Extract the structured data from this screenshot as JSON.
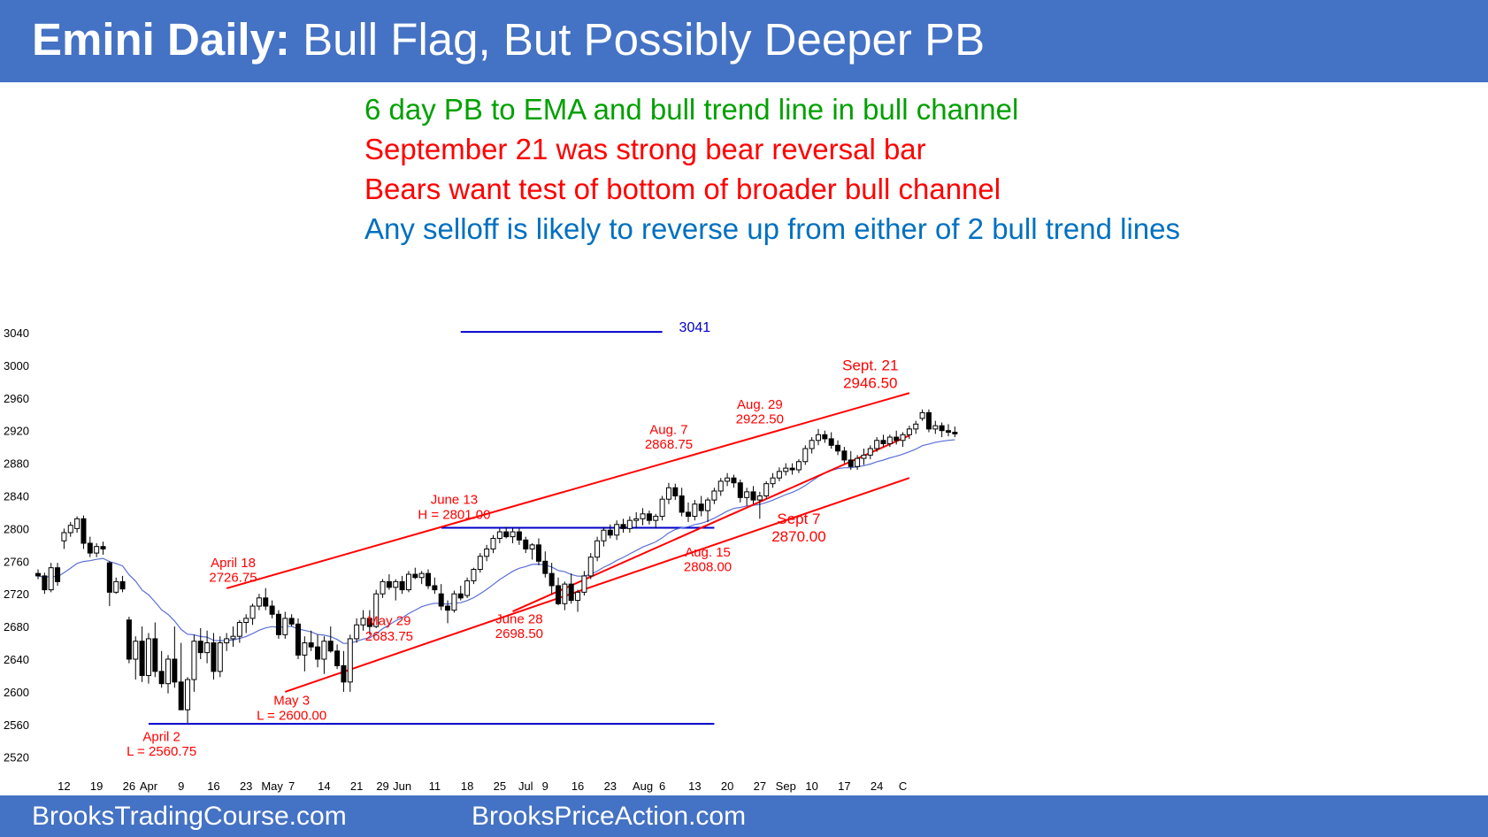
{
  "header": {
    "title_bold": "Emini Daily:",
    "title_rest": "Bull Flag, But Possibly Deeper PB"
  },
  "notes": [
    {
      "text": "6 day PB to EMA and bull trend line in bull channel",
      "color": "#00a000"
    },
    {
      "text": "September 21 was strong bear reversal bar",
      "color": "#ff0000"
    },
    {
      "text": "Bears want test of bottom of broader bull channel",
      "color": "#ff0000"
    },
    {
      "text": "Any selloff is likely to reverse up from either of 2 bull trend lines",
      "color": "#0070c0"
    }
  ],
  "footer": {
    "left": "BrooksTradingCourse.com",
    "center": "BrooksPriceAction.com"
  },
  "colors": {
    "header_bg": "#4472c4",
    "up_candle": "#ffffff",
    "down_candle": "#000000",
    "ema": "#5a6fd6",
    "trendline": "#ff0000",
    "level": "#0000cc"
  },
  "chart_data": {
    "type": "candlestick",
    "ylim": [
      2500,
      3050
    ],
    "y_ticks": [
      2520,
      2560,
      2600,
      2640,
      2680,
      2720,
      2760,
      2800,
      2840,
      2880,
      2920,
      2960,
      3000,
      3040
    ],
    "x_tick_labels": [
      {
        "label": "12",
        "i": 4
      },
      {
        "label": "19",
        "i": 9
      },
      {
        "label": "26",
        "i": 14
      },
      {
        "label": "Apr",
        "i": 17
      },
      {
        "label": "9",
        "i": 22
      },
      {
        "label": "16",
        "i": 27
      },
      {
        "label": "23",
        "i": 32
      },
      {
        "label": "May",
        "i": 36
      },
      {
        "label": "7",
        "i": 39
      },
      {
        "label": "14",
        "i": 44
      },
      {
        "label": "21",
        "i": 49
      },
      {
        "label": "29",
        "i": 53
      },
      {
        "label": "Jun",
        "i": 56
      },
      {
        "label": "11",
        "i": 61
      },
      {
        "label": "18",
        "i": 66
      },
      {
        "label": "25",
        "i": 71
      },
      {
        "label": "Jul",
        "i": 75
      },
      {
        "label": "9",
        "i": 78
      },
      {
        "label": "16",
        "i": 83
      },
      {
        "label": "23",
        "i": 88
      },
      {
        "label": "Aug",
        "i": 93
      },
      {
        "label": "6",
        "i": 96
      },
      {
        "label": "13",
        "i": 101
      },
      {
        "label": "20",
        "i": 106
      },
      {
        "label": "27",
        "i": 111
      },
      {
        "label": "Sep",
        "i": 115
      },
      {
        "label": "10",
        "i": 119
      },
      {
        "label": "17",
        "i": 124
      },
      {
        "label": "24",
        "i": 129
      },
      {
        "label": "C",
        "i": 133
      }
    ],
    "ohlc": [
      [
        2745,
        2750,
        2738,
        2742
      ],
      [
        2742,
        2746,
        2720,
        2725
      ],
      [
        2725,
        2758,
        2722,
        2752
      ],
      [
        2752,
        2758,
        2730,
        2735
      ],
      [
        2785,
        2800,
        2775,
        2795
      ],
      [
        2795,
        2808,
        2790,
        2804
      ],
      [
        2800,
        2815,
        2795,
        2812
      ],
      [
        2812,
        2816,
        2775,
        2782
      ],
      [
        2782,
        2790,
        2765,
        2770
      ],
      [
        2770,
        2782,
        2765,
        2778
      ],
      [
        2778,
        2784,
        2768,
        2775
      ],
      [
        2758,
        2760,
        2705,
        2722
      ],
      [
        2722,
        2740,
        2720,
        2735
      ],
      [
        2735,
        2742,
        2722,
        2726
      ],
      [
        2688,
        2692,
        2635,
        2640
      ],
      [
        2640,
        2668,
        2615,
        2662
      ],
      [
        2662,
        2680,
        2612,
        2620
      ],
      [
        2620,
        2672,
        2610,
        2665
      ],
      [
        2665,
        2685,
        2618,
        2625
      ],
      [
        2625,
        2650,
        2605,
        2610
      ],
      [
        2610,
        2645,
        2598,
        2640
      ],
      [
        2640,
        2680,
        2605,
        2612
      ],
      [
        2612,
        2660,
        2580,
        2578
      ],
      [
        2578,
        2618,
        2562,
        2615
      ],
      [
        2615,
        2670,
        2600,
        2662
      ],
      [
        2662,
        2678,
        2640,
        2648
      ],
      [
        2648,
        2675,
        2635,
        2660
      ],
      [
        2660,
        2672,
        2615,
        2625
      ],
      [
        2625,
        2668,
        2618,
        2660
      ],
      [
        2660,
        2672,
        2650,
        2665
      ],
      [
        2665,
        2680,
        2655,
        2668
      ],
      [
        2668,
        2688,
        2660,
        2685
      ],
      [
        2685,
        2695,
        2672,
        2690
      ],
      [
        2690,
        2708,
        2682,
        2705
      ],
      [
        2705,
        2720,
        2700,
        2715
      ],
      [
        2715,
        2727,
        2700,
        2705
      ],
      [
        2705,
        2712,
        2690,
        2695
      ],
      [
        2695,
        2700,
        2665,
        2670
      ],
      [
        2670,
        2698,
        2665,
        2690
      ],
      [
        2690,
        2695,
        2680,
        2683
      ],
      [
        2683,
        2690,
        2640,
        2645
      ],
      [
        2645,
        2668,
        2625,
        2660
      ],
      [
        2660,
        2675,
        2650,
        2655
      ],
      [
        2655,
        2670,
        2630,
        2640
      ],
      [
        2640,
        2668,
        2622,
        2662
      ],
      [
        2662,
        2680,
        2648,
        2650
      ],
      [
        2650,
        2658,
        2628,
        2632
      ],
      [
        2632,
        2650,
        2600,
        2612
      ],
      [
        2612,
        2670,
        2600,
        2665
      ],
      [
        2665,
        2690,
        2660,
        2682
      ],
      [
        2682,
        2700,
        2675,
        2690
      ],
      [
        2690,
        2700,
        2670,
        2680
      ],
      [
        2680,
        2725,
        2678,
        2720
      ],
      [
        2720,
        2738,
        2715,
        2735
      ],
      [
        2735,
        2744,
        2725,
        2728
      ],
      [
        2728,
        2738,
        2712,
        2735
      ],
      [
        2735,
        2742,
        2720,
        2725
      ],
      [
        2725,
        2748,
        2722,
        2744
      ],
      [
        2744,
        2752,
        2738,
        2740
      ],
      [
        2740,
        2748,
        2732,
        2745
      ],
      [
        2745,
        2750,
        2726,
        2730
      ],
      [
        2730,
        2740,
        2720,
        2725
      ],
      [
        2720,
        2732,
        2700,
        2705
      ],
      [
        2705,
        2712,
        2684,
        2700
      ],
      [
        2700,
        2724,
        2697,
        2720
      ],
      [
        2720,
        2730,
        2712,
        2715
      ],
      [
        2718,
        2740,
        2715,
        2736
      ],
      [
        2736,
        2752,
        2732,
        2750
      ],
      [
        2750,
        2770,
        2746,
        2766
      ],
      [
        2766,
        2780,
        2760,
        2775
      ],
      [
        2775,
        2792,
        2770,
        2788
      ],
      [
        2788,
        2800,
        2782,
        2796
      ],
      [
        2796,
        2802,
        2788,
        2790
      ],
      [
        2790,
        2801,
        2782,
        2796
      ],
      [
        2796,
        2800,
        2780,
        2786
      ],
      [
        2786,
        2790,
        2770,
        2775
      ],
      [
        2775,
        2782,
        2762,
        2780
      ],
      [
        2780,
        2788,
        2755,
        2760
      ],
      [
        2760,
        2772,
        2740,
        2745
      ],
      [
        2745,
        2758,
        2720,
        2730
      ],
      [
        2730,
        2740,
        2706,
        2708
      ],
      [
        2708,
        2735,
        2700,
        2732
      ],
      [
        2732,
        2745,
        2708,
        2712
      ],
      [
        2712,
        2725,
        2698,
        2722
      ],
      [
        2722,
        2748,
        2718,
        2742
      ],
      [
        2742,
        2770,
        2738,
        2765
      ],
      [
        2765,
        2790,
        2760,
        2785
      ],
      [
        2785,
        2802,
        2778,
        2798
      ],
      [
        2798,
        2805,
        2788,
        2792
      ],
      [
        2792,
        2810,
        2786,
        2805
      ],
      [
        2805,
        2812,
        2795,
        2800
      ],
      [
        2800,
        2815,
        2795,
        2810
      ],
      [
        2810,
        2820,
        2800,
        2812
      ],
      [
        2812,
        2825,
        2804,
        2818
      ],
      [
        2818,
        2822,
        2805,
        2810
      ],
      [
        2810,
        2818,
        2800,
        2815
      ],
      [
        2815,
        2840,
        2810,
        2836
      ],
      [
        2836,
        2856,
        2830,
        2850
      ],
      [
        2850,
        2855,
        2835,
        2840
      ],
      [
        2840,
        2850,
        2815,
        2820
      ],
      [
        2820,
        2832,
        2808,
        2815
      ],
      [
        2815,
        2835,
        2810,
        2830
      ],
      [
        2830,
        2840,
        2815,
        2822
      ],
      [
        2822,
        2838,
        2808,
        2835
      ],
      [
        2835,
        2850,
        2830,
        2846
      ],
      [
        2846,
        2862,
        2840,
        2858
      ],
      [
        2858,
        2868,
        2852,
        2862
      ],
      [
        2862,
        2866,
        2850,
        2856
      ],
      [
        2856,
        2860,
        2832,
        2838
      ],
      [
        2838,
        2850,
        2828,
        2845
      ],
      [
        2845,
        2852,
        2830,
        2835
      ],
      [
        2835,
        2845,
        2812,
        2840
      ],
      [
        2840,
        2858,
        2836,
        2855
      ],
      [
        2855,
        2868,
        2850,
        2862
      ],
      [
        2862,
        2875,
        2858,
        2870
      ],
      [
        2870,
        2880,
        2865,
        2874
      ],
      [
        2874,
        2880,
        2866,
        2872
      ],
      [
        2872,
        2885,
        2868,
        2882
      ],
      [
        2882,
        2902,
        2878,
        2898
      ],
      [
        2898,
        2912,
        2892,
        2908
      ],
      [
        2908,
        2922,
        2902,
        2915
      ],
      [
        2915,
        2920,
        2905,
        2910
      ],
      [
        2910,
        2918,
        2898,
        2902
      ],
      [
        2902,
        2908,
        2890,
        2895
      ],
      [
        2895,
        2900,
        2880,
        2884
      ],
      [
        2884,
        2895,
        2872,
        2876
      ],
      [
        2876,
        2890,
        2872,
        2886
      ],
      [
        2886,
        2898,
        2878,
        2890
      ],
      [
        2890,
        2902,
        2885,
        2898
      ],
      [
        2898,
        2912,
        2894,
        2908
      ],
      [
        2908,
        2915,
        2900,
        2904
      ],
      [
        2904,
        2915,
        2900,
        2912
      ],
      [
        2912,
        2920,
        2903,
        2908
      ],
      [
        2908,
        2918,
        2900,
        2915
      ],
      [
        2915,
        2926,
        2910,
        2922
      ],
      [
        2922,
        2932,
        2916,
        2928
      ],
      [
        2935,
        2946,
        2932,
        2942
      ],
      [
        2942,
        2946,
        2918,
        2922
      ],
      [
        2922,
        2932,
        2916,
        2926
      ],
      [
        2926,
        2930,
        2912,
        2920
      ],
      [
        2920,
        2928,
        2913,
        2918
      ],
      [
        2918,
        2925,
        2912,
        2916
      ]
    ],
    "ema_period": 20,
    "levels": [
      {
        "name": "3041",
        "y": 3041,
        "x_from": 65,
        "x_to": 96
      },
      {
        "name": "April 2 low",
        "y": 2560.75,
        "x_from": 17,
        "x_to": 104
      },
      {
        "name": "June 13 high",
        "y": 2801,
        "x_from": 62,
        "x_to": 104
      }
    ],
    "trend_lines": [
      {
        "name": "channel top",
        "from": {
          "i": 29,
          "y": 2726.75
        },
        "to": {
          "i": 134,
          "y": 2966
        }
      },
      {
        "name": "steep bull trend line",
        "from": {
          "i": 73,
          "y": 2698.5
        },
        "to": {
          "i": 134,
          "y": 2914
        }
      },
      {
        "name": "broad bull trend line",
        "from": {
          "i": 38,
          "y": 2600
        },
        "to": {
          "i": 134,
          "y": 2862
        }
      }
    ],
    "labels": [
      {
        "text": "3041",
        "i": 101,
        "y": 3041,
        "style": "blue"
      },
      {
        "text": "Sept. 21",
        "i": 128,
        "y": 2994,
        "style": "big"
      },
      {
        "text": "2946.50",
        "i": 128,
        "y": 2972,
        "style": "big"
      },
      {
        "text": "Aug. 29",
        "i": 111,
        "y": 2947,
        "style": "normal"
      },
      {
        "text": "2922.50",
        "i": 111,
        "y": 2929,
        "style": "normal"
      },
      {
        "text": "Aug. 7",
        "i": 97,
        "y": 2916,
        "style": "normal"
      },
      {
        "text": "2868.75",
        "i": 97,
        "y": 2898,
        "style": "normal"
      },
      {
        "text": "June 13",
        "i": 64,
        "y": 2830,
        "style": "normal"
      },
      {
        "text": "H = 2801.00",
        "i": 64,
        "y": 2812,
        "style": "normal"
      },
      {
        "text": "April 18",
        "i": 30,
        "y": 2753,
        "style": "normal"
      },
      {
        "text": "2726.75",
        "i": 30,
        "y": 2735,
        "style": "normal"
      },
      {
        "text": "May 29",
        "i": 54,
        "y": 2682,
        "style": "normal"
      },
      {
        "text": "2683.75",
        "i": 54,
        "y": 2663,
        "style": "normal"
      },
      {
        "text": "June 28",
        "i": 74,
        "y": 2684,
        "style": "normal"
      },
      {
        "text": "2698.50",
        "i": 74,
        "y": 2666,
        "style": "normal"
      },
      {
        "text": "Aug. 15",
        "i": 103,
        "y": 2766,
        "style": "normal"
      },
      {
        "text": "2808.00",
        "i": 103,
        "y": 2748,
        "style": "normal"
      },
      {
        "text": "Sept 7",
        "i": 117,
        "y": 2806,
        "style": "big"
      },
      {
        "text": "2870.00",
        "i": 117,
        "y": 2784,
        "style": "big"
      },
      {
        "text": "May 3",
        "i": 39,
        "y": 2584,
        "style": "normal"
      },
      {
        "text": "L = 2600.00",
        "i": 39,
        "y": 2566,
        "style": "normal"
      },
      {
        "text": "April 2",
        "i": 19,
        "y": 2540,
        "style": "normal"
      },
      {
        "text": "L = 2560.75",
        "i": 19,
        "y": 2522,
        "style": "normal"
      }
    ]
  }
}
